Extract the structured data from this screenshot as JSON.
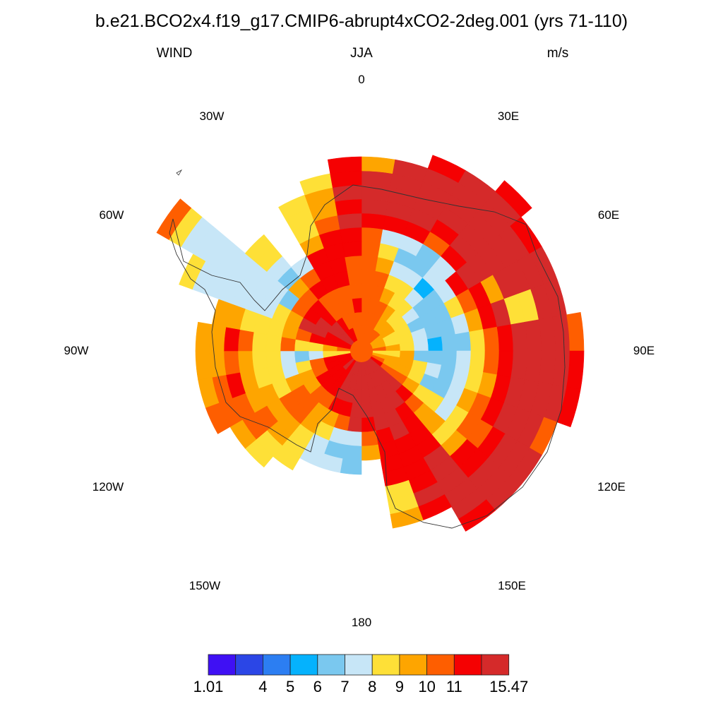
{
  "title": "b.e21.BCO2x4.f19_g17.CMIP6-abrupt4xCO2-2deg.001 (yrs 71-110)",
  "left_string": "WIND",
  "center_string": "JJA",
  "right_string": "m/s",
  "longitude_labels": [
    "0",
    "30E",
    "60E",
    "90E",
    "120E",
    "150E",
    "180",
    "150W",
    "120W",
    "90W",
    "60W",
    "30W"
  ],
  "colorbar": {
    "colors": [
      "#3f10f4",
      "#2b46e6",
      "#2c7ef2",
      "#05b2fd",
      "#7ac8ef",
      "#c7e6f7",
      "#fee037",
      "#fea500",
      "#fe5e00",
      "#f50102",
      "#d52a2a"
    ],
    "labels": [
      "1.01",
      "",
      "4",
      "5",
      "6",
      "7",
      "8",
      "9",
      "10",
      "11",
      "",
      "15.47"
    ]
  },
  "map_data": {
    "sector_width_deg": 10,
    "center_value_index": 8,
    "sectors": [
      "888888889AAA7...",
      "888887659AAAA...",
      "888765459AAAA9..",
      "8776654489AAAA..",
      "876653559AAAAA9.",
      "77654459AAAAA9..",
      "7664446897AAAA..",
      "766544579A66AA..",
      "8765344689AAAA8.",
      "6674445689AAAA9.",
      "7776545679AAAA9.",
      "8776445789AAA8..",
      "98876656889AAA..",
      "AAA98776799AAA..",
      "AAAA9999AAAAA9..",
      "AAAAAA9999A9....",
      "AAAAA9999667....",
      "AAAA987.........",
      "AAAAA544........",
      "AAA98545........",
      "AAA97655........",
      "999877666.......",
      "A998887766......",
      "9997887887......",
      "99877677888.....",
      "99865667987.....",
      "66545667877.....",
      "87668668977.....",
      "9998766677......",
      "99AA765555556...",
      "AAA9845555555568",
      "AA99874566......",
      "9988985.........",
      "98889997666.....",
      "888899998776....",
      "88988899A9A99..."
    ]
  }
}
